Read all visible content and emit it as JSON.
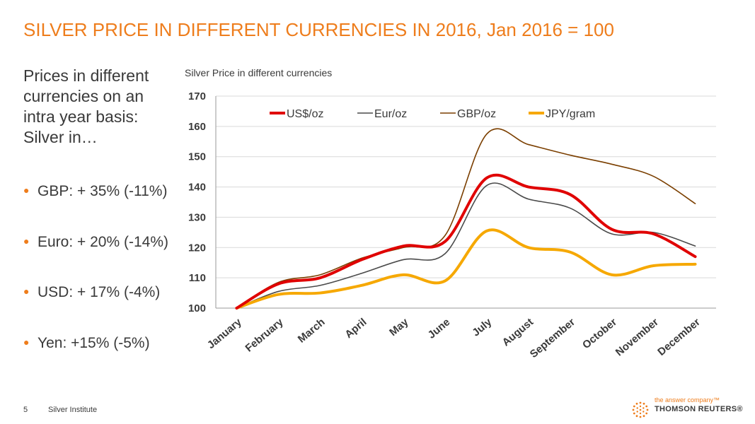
{
  "slide": {
    "title": "SILVER PRICE IN DIFFERENT CURRENCIES IN 2016, Jan 2016 = 100",
    "intro": "Prices in different currencies on an intra year basis: Silver in…",
    "bullets": [
      "GBP: + 35% (-11%)",
      "Euro: + 20% (-14%)",
      "USD: + 17% (-4%)",
      "Yen: +15% (-5%)"
    ],
    "page_number": "5",
    "source": "Silver Institute",
    "logo": {
      "tagline": "the answer company™",
      "brand": "THOMSON REUTERS®"
    }
  },
  "chart_data": {
    "type": "line",
    "title": "Silver Price in different currencies",
    "xlabel": "",
    "ylabel": "",
    "categories": [
      "January",
      "February",
      "March",
      "April",
      "May",
      "June",
      "July",
      "August",
      "September",
      "October",
      "November",
      "December"
    ],
    "ylim": [
      100,
      170
    ],
    "yticks": [
      100,
      110,
      120,
      130,
      140,
      150,
      160,
      170
    ],
    "grid": true,
    "legend": "top",
    "series": [
      {
        "name": "US$/oz",
        "color": "#e00000",
        "width": 4,
        "values": [
          100,
          108,
          110,
          116,
          120.5,
          122,
          143,
          140,
          137.5,
          126,
          124.5,
          117
        ]
      },
      {
        "name": "Eur/oz",
        "color": "#4a4a4a",
        "width": 1.6,
        "values": [
          100,
          105.5,
          107.5,
          111.5,
          116,
          118,
          140.5,
          136,
          133,
          124.5,
          125,
          120.5
        ]
      },
      {
        "name": "GBP/oz",
        "color": "#7b3f00",
        "width": 1.6,
        "values": [
          100,
          108.5,
          111,
          116.5,
          120,
          124,
          157.5,
          154,
          150.5,
          147.5,
          143.5,
          134.5
        ]
      },
      {
        "name": "JPY/gram",
        "color": "#f6a800",
        "width": 4,
        "values": [
          100,
          104.5,
          105,
          107.5,
          111,
          109,
          125.5,
          120,
          118.5,
          111,
          114,
          114.5
        ]
      }
    ]
  }
}
